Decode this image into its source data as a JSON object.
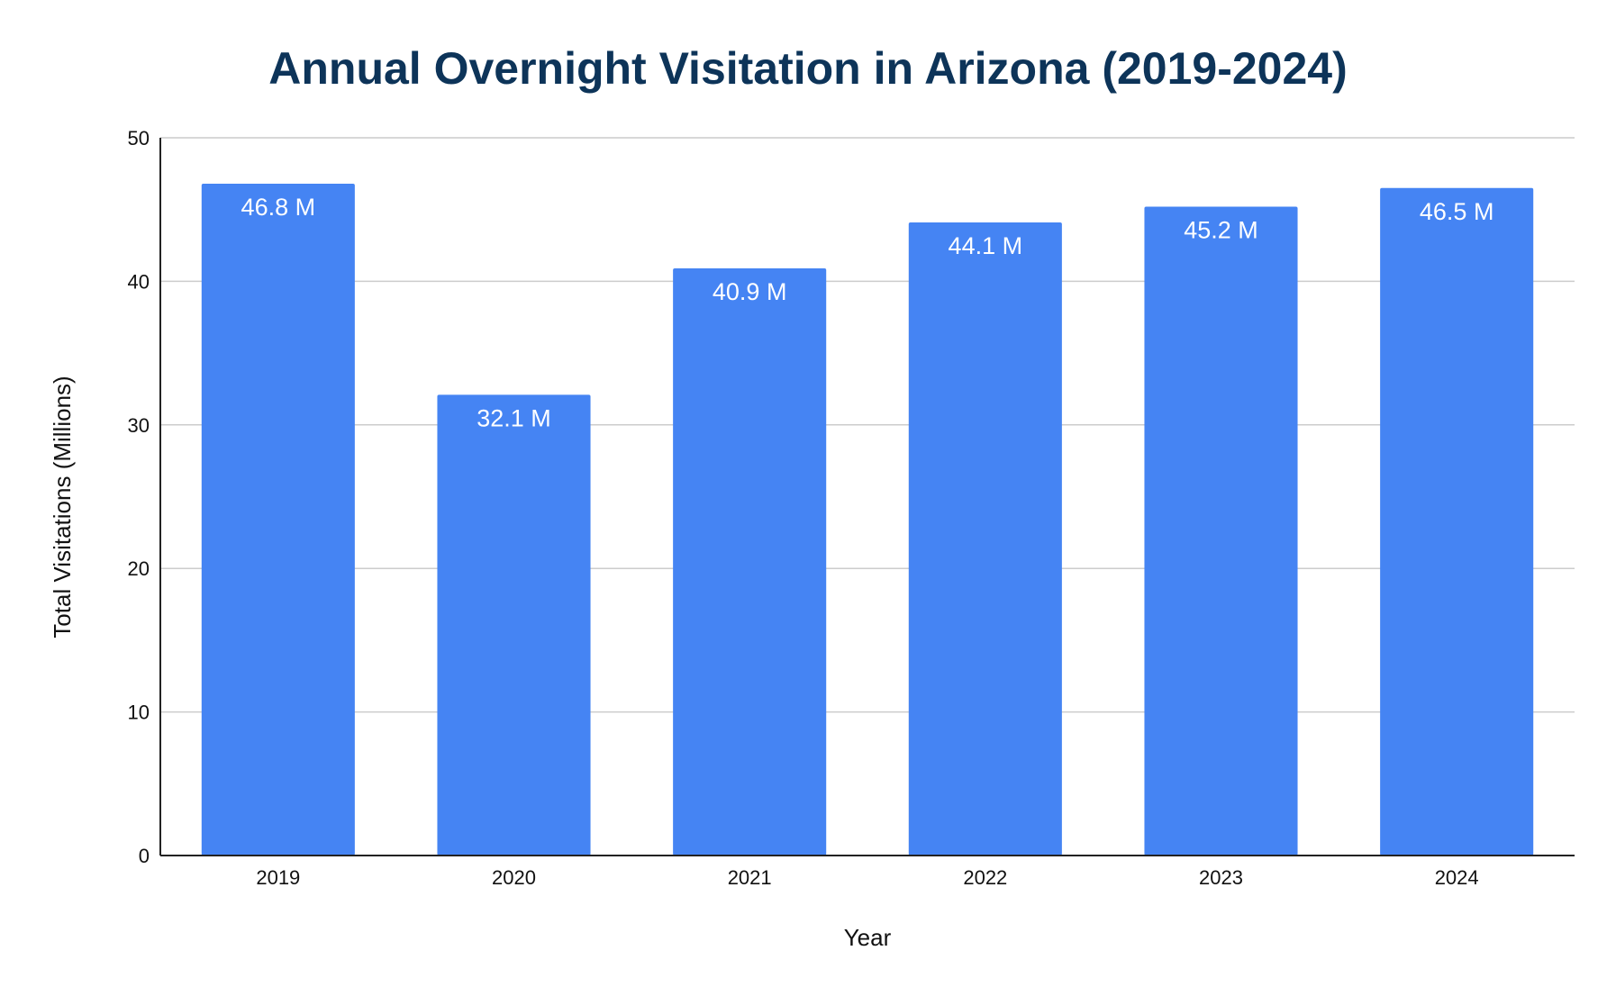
{
  "chart_data": {
    "type": "bar",
    "title": "Annual Overnight Visitation in Arizona (2019-2024)",
    "xlabel": "Year",
    "ylabel": "Total Visitations (Millions)",
    "categories": [
      "2019",
      "2020",
      "2021",
      "2022",
      "2023",
      "2024"
    ],
    "values": [
      46.8,
      32.1,
      40.9,
      44.1,
      45.2,
      46.5
    ],
    "data_labels": [
      "46.8 M",
      "32.1 M",
      "40.9 M",
      "44.1 M",
      "45.2 M",
      "46.5 M"
    ],
    "ylim": [
      0,
      50
    ],
    "yticks": [
      0,
      10,
      20,
      30,
      40,
      50
    ],
    "grid": true,
    "legend": "none",
    "colors": {
      "bar": "#4584f3",
      "title": "#0d3459",
      "grid": "#cccccc",
      "axis": "#222222"
    }
  }
}
